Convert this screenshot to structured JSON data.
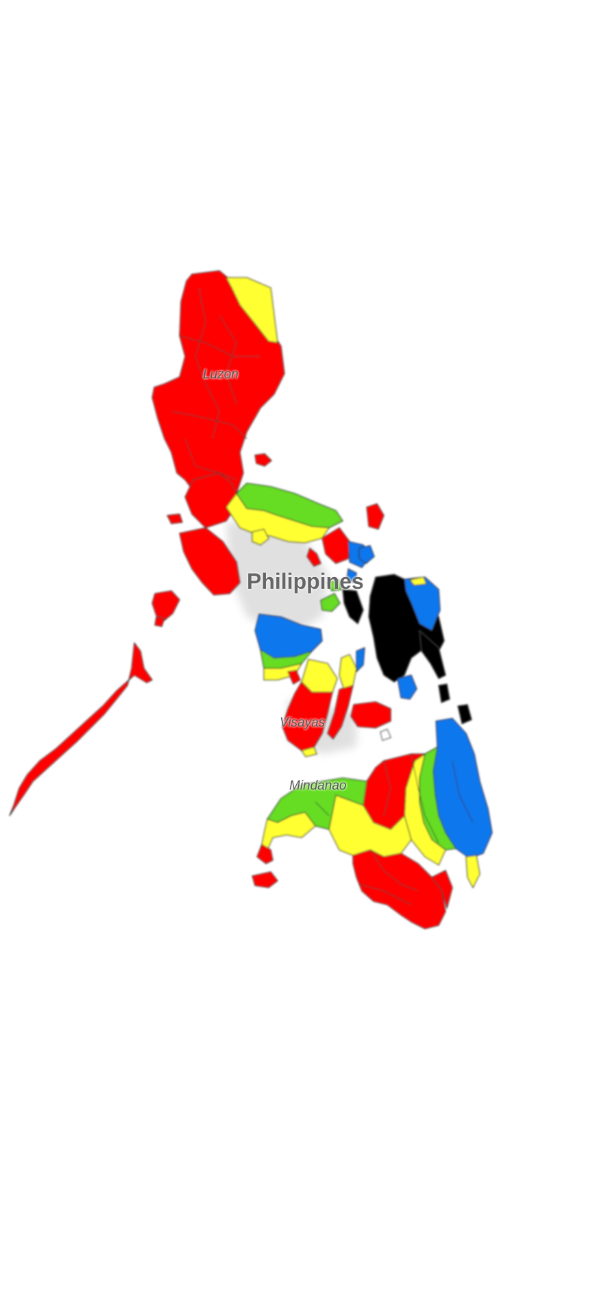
{
  "map": {
    "labels": {
      "luzon": "Luzon",
      "visayas": "Visayas",
      "mindanao": "Mindanao",
      "country": "Philippines"
    },
    "colors": {
      "red": "#ff0000",
      "yellow": "#ffff33",
      "green": "#66dd22",
      "blue": "#1177ee",
      "black": "#000000",
      "border": "#333333",
      "land_shadow": "#dddddd"
    }
  }
}
